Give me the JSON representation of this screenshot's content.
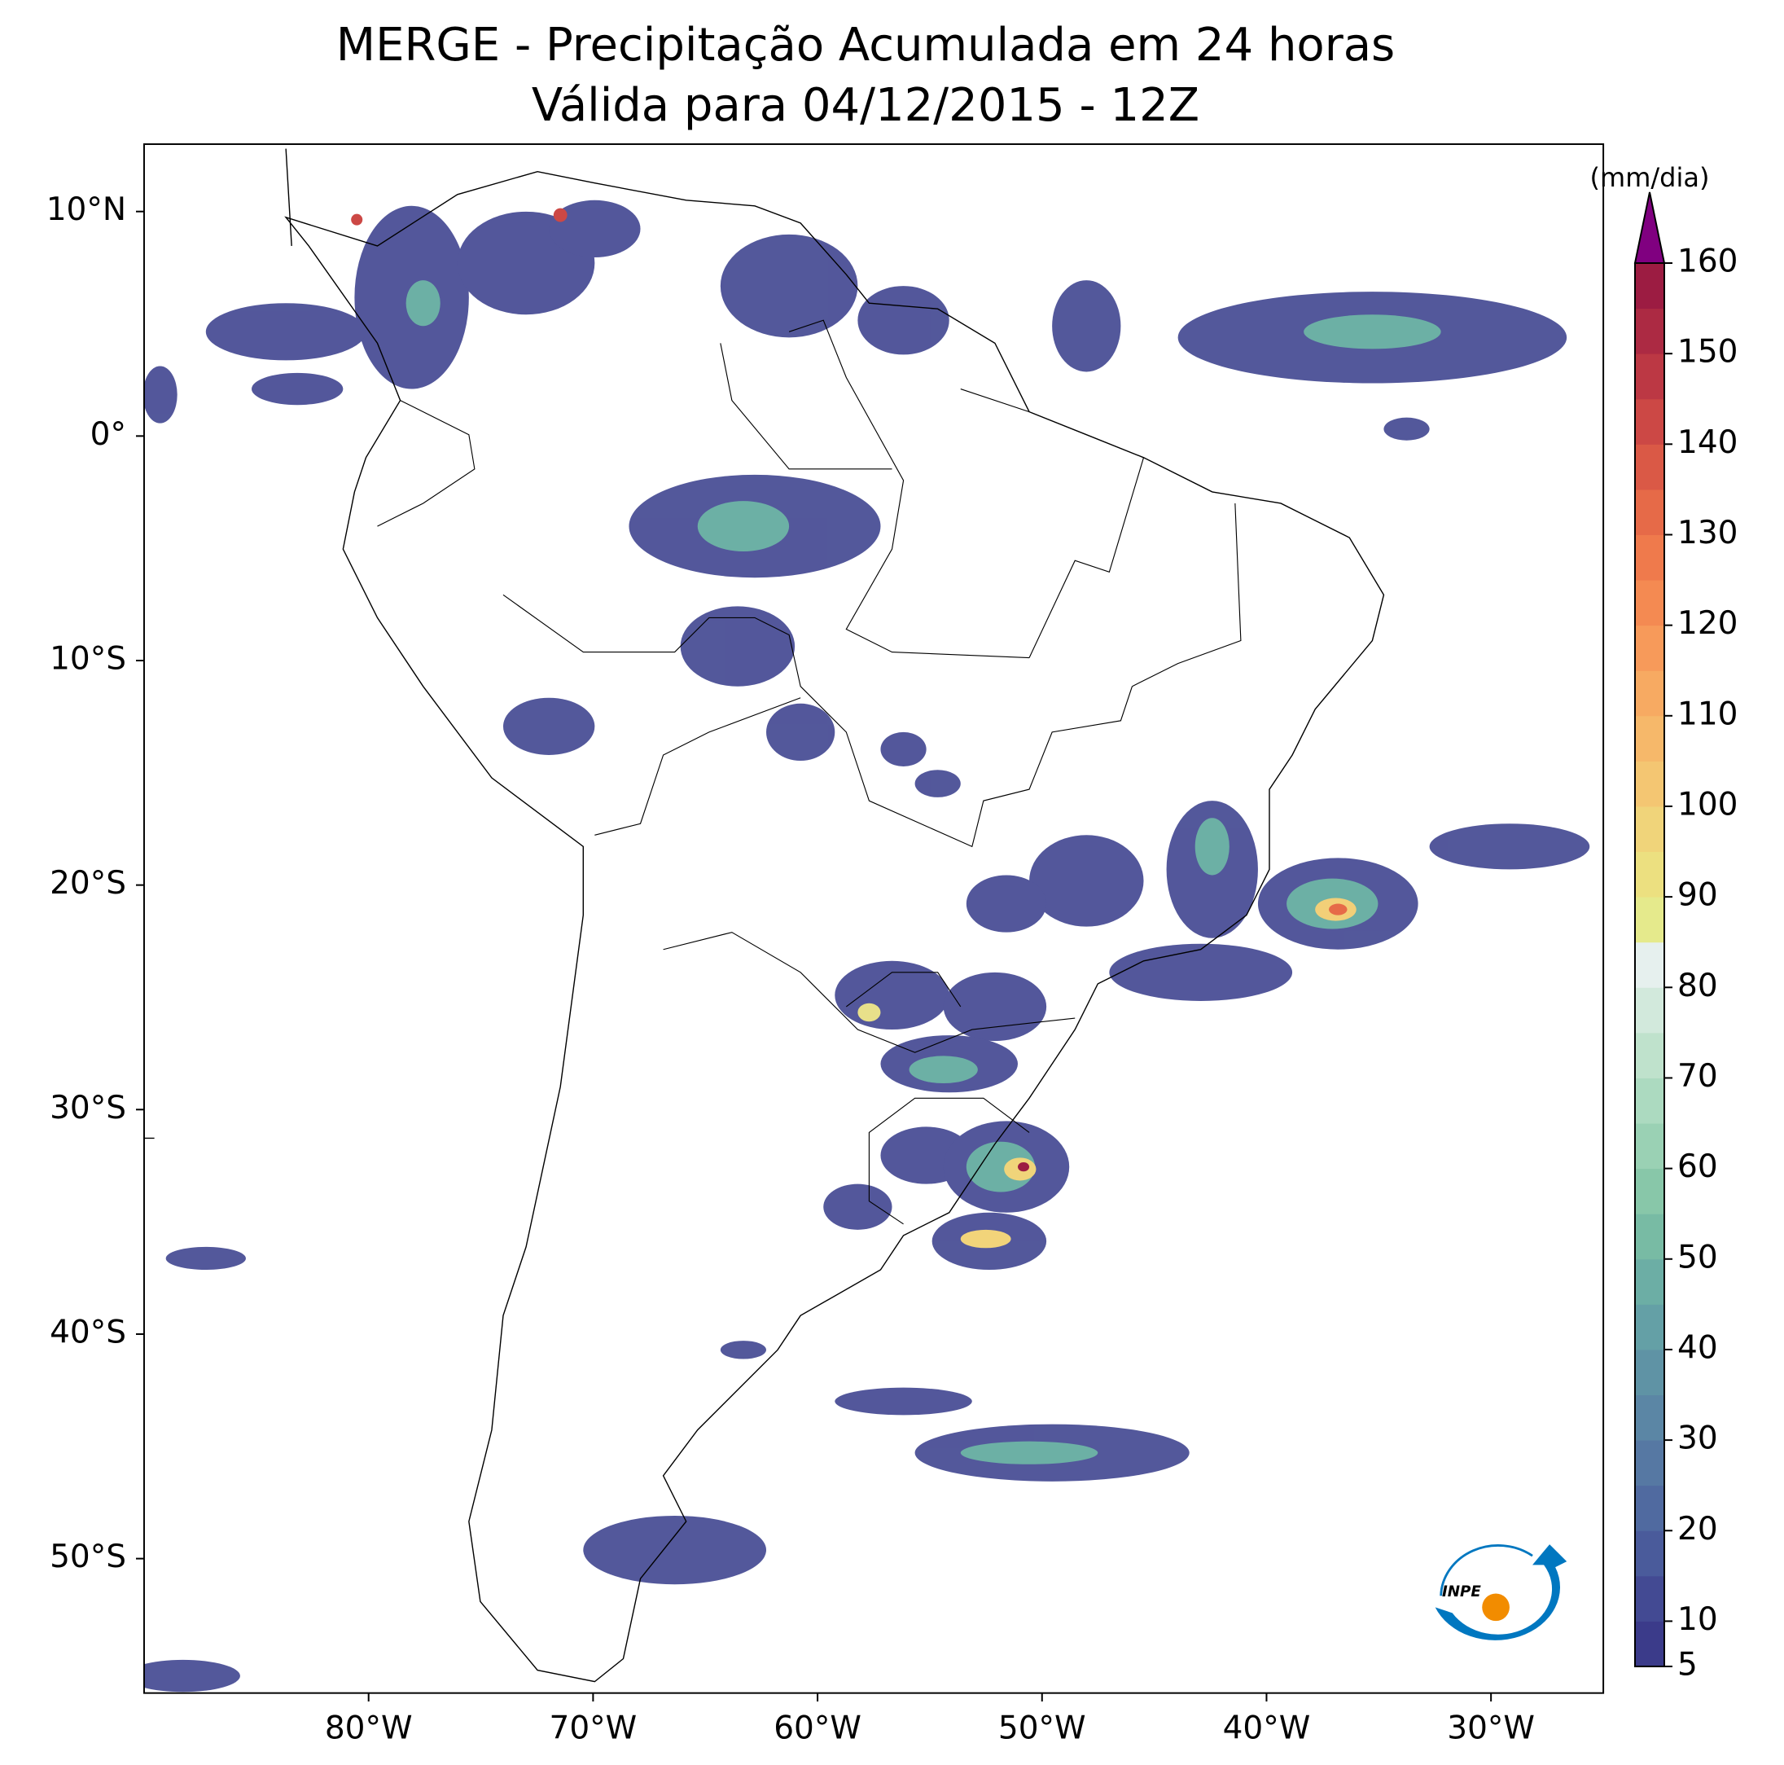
{
  "chart_data": {
    "type": "map",
    "title": "MERGE - Precipitação Acumulada em 24 horas",
    "subtitle": "Válida para 04/12/2015 - 12Z",
    "xlim": [
      -90,
      -25
    ],
    "ylim": [
      -56,
      13
    ],
    "xticks": [
      {
        "value": -80,
        "label": "80°W"
      },
      {
        "value": -70,
        "label": "70°W"
      },
      {
        "value": -60,
        "label": "60°W"
      },
      {
        "value": -50,
        "label": "50°W"
      },
      {
        "value": -40,
        "label": "40°W"
      },
      {
        "value": -30,
        "label": "30°W"
      }
    ],
    "yticks": [
      {
        "value": 10,
        "label": "10°N"
      },
      {
        "value": 0,
        "label": "0°"
      },
      {
        "value": -10,
        "label": "10°S"
      },
      {
        "value": -20,
        "label": "20°S"
      },
      {
        "value": -30,
        "label": "30°S"
      },
      {
        "value": -40,
        "label": "40°S"
      },
      {
        "value": -50,
        "label": "50°S"
      }
    ],
    "colorbar": {
      "label": "(mm/dia)",
      "range": [
        5,
        160
      ],
      "ticks": [
        5,
        10,
        20,
        30,
        40,
        50,
        60,
        70,
        80,
        90,
        100,
        110,
        120,
        130,
        140,
        150,
        160
      ],
      "colors": [
        "#3b3b8a",
        "#434a93",
        "#4a5b9b",
        "#506aa0",
        "#5678a3",
        "#5b86a5",
        "#5f93a5",
        "#64a0a6",
        "#6caea5",
        "#78bba4",
        "#88c7a9",
        "#9ad1b4",
        "#acdac0",
        "#bfe2cc",
        "#d2e9dc",
        "#e6f0ee",
        "#e5ea8c",
        "#ece080",
        "#f0d47a",
        "#f4c672",
        "#f6b86a",
        "#f7aa62",
        "#f79a5a",
        "#f48a52",
        "#ef7a4c",
        "#e66a48",
        "#da5946",
        "#cc4845",
        "#bc3844",
        "#ac2a43",
        "#9c1c42"
      ],
      "extend_color": "#800080"
    },
    "logo": "INPE"
  }
}
